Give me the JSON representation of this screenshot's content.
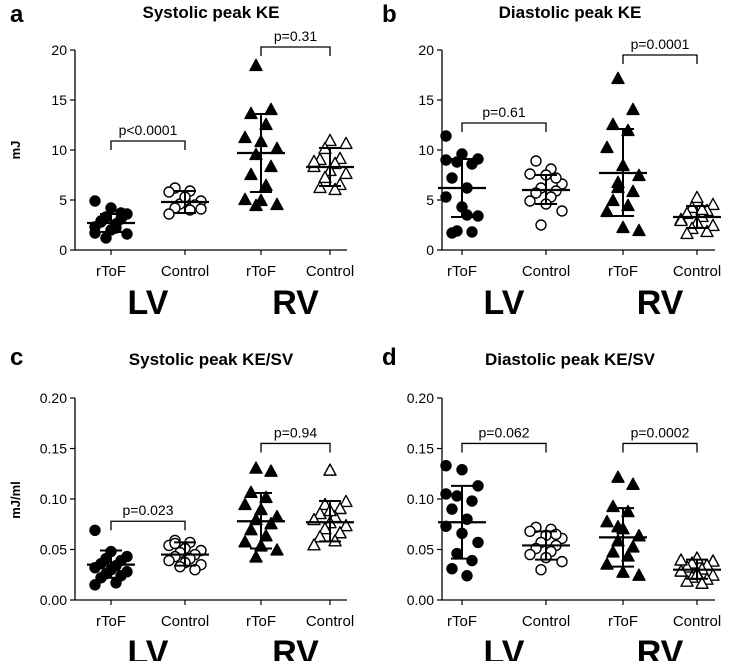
{
  "figure": {
    "background": "#ffffff",
    "ink": "#000000"
  },
  "chart_data": [
    {
      "panel_label": "a",
      "type": "scatter",
      "title": "Systolic peak KE",
      "ylabel": "mJ",
      "ylim": [
        0,
        20
      ],
      "yticks": [
        "0",
        "5",
        "10",
        "15",
        "20"
      ],
      "categories": [
        "rToF",
        "Control",
        "rToF",
        "Control"
      ],
      "groups": [
        "LV",
        "RV"
      ],
      "comparisons": [
        {
          "label": "p<0.0001",
          "from": 0,
          "to": 1,
          "y": 10.9
        },
        {
          "label": "p=0.31",
          "from": 2,
          "to": 3,
          "y": 20.3
        }
      ],
      "series": [
        {
          "name": "LV rToF",
          "marker": "circle",
          "filled": true,
          "mean": 2.7,
          "sd_low": 1.8,
          "sd_high": 3.6,
          "values": [
            4.9,
            4.2,
            3.6,
            3.3,
            3.1,
            2.9,
            2.6,
            2.3,
            2.0,
            1.6,
            1.2,
            3.7,
            2.8,
            2.2,
            1.7
          ]
        },
        {
          "name": "LV Control",
          "marker": "circle",
          "filled": false,
          "mean": 4.8,
          "sd_low": 3.7,
          "sd_high": 5.9,
          "values": [
            6.2,
            5.9,
            5.8,
            5.0,
            4.9,
            4.6,
            4.5,
            4.2,
            4.0,
            3.6,
            5.3,
            4.1
          ]
        },
        {
          "name": "RV rToF",
          "marker": "triangle",
          "filled": true,
          "mean": 9.7,
          "sd_low": 5.8,
          "sd_high": 13.6,
          "values": [
            18.4,
            14.0,
            13.6,
            12.5,
            11.2,
            10.8,
            10.1,
            9.5,
            8.3,
            7.5,
            6.4,
            5.0,
            4.9,
            4.5,
            4.4
          ]
        },
        {
          "name": "RV Control",
          "marker": "triangle",
          "filled": false,
          "mean": 8.3,
          "sd_low": 6.4,
          "sd_high": 10.2,
          "values": [
            10.9,
            10.6,
            10.1,
            9.1,
            9.0,
            8.6,
            8.3,
            7.9,
            7.6,
            7.2,
            6.5,
            6.2,
            6.0,
            8.8
          ]
        }
      ]
    },
    {
      "panel_label": "b",
      "type": "scatter",
      "title": "Diastolic peak KE",
      "ylabel": "",
      "ylim": [
        0,
        20
      ],
      "yticks": [
        "0",
        "5",
        "10",
        "15",
        "20"
      ],
      "categories": [
        "rToF",
        "Control",
        "rToF",
        "Control"
      ],
      "groups": [
        "LV",
        "RV"
      ],
      "comparisons": [
        {
          "label": "p=0.61",
          "from": 0,
          "to": 1,
          "y": 12.7
        },
        {
          "label": "p=0.0001",
          "from": 2,
          "to": 3,
          "y": 19.5
        }
      ],
      "series": [
        {
          "name": "LV rToF",
          "marker": "circle",
          "filled": true,
          "mean": 6.2,
          "sd_low": 3.3,
          "sd_high": 9.1,
          "values": [
            11.4,
            9.6,
            9.1,
            8.8,
            8.6,
            7.2,
            6.2,
            5.3,
            4.3,
            3.4,
            1.9,
            1.8,
            1.7,
            3.5,
            9.0
          ]
        },
        {
          "name": "LV Control",
          "marker": "circle",
          "filled": false,
          "mean": 6.0,
          "sd_low": 4.6,
          "sd_high": 7.5,
          "values": [
            8.9,
            8.1,
            7.6,
            7.5,
            6.6,
            6.2,
            5.9,
            5.7,
            5.3,
            4.9,
            4.6,
            3.9,
            2.5,
            7.2
          ]
        },
        {
          "name": "RV rToF",
          "marker": "triangle",
          "filled": true,
          "mean": 7.7,
          "sd_low": 3.4,
          "sd_high": 12.1,
          "values": [
            17.1,
            14.0,
            12.5,
            11.9,
            10.2,
            8.4,
            7.4,
            6.7,
            5.8,
            4.9,
            4.4,
            3.8,
            2.2,
            1.9,
            6.2
          ]
        },
        {
          "name": "RV Control",
          "marker": "triangle",
          "filled": false,
          "mean": 3.3,
          "sd_low": 2.2,
          "sd_high": 4.4,
          "values": [
            5.2,
            4.5,
            4.2,
            3.9,
            3.6,
            3.3,
            3.0,
            2.7,
            2.4,
            2.1,
            1.8,
            1.6,
            4.0,
            2.9
          ]
        }
      ]
    },
    {
      "panel_label": "c",
      "type": "scatter",
      "title": "Systolic peak KE/SV",
      "ylabel": "mJ/ml",
      "ylim": [
        0,
        0.2
      ],
      "yticks": [
        "0.00",
        "0.05",
        "0.10",
        "0.15",
        "0.20"
      ],
      "categories": [
        "rToF",
        "Control",
        "rToF",
        "Control"
      ],
      "groups": [
        "LV",
        "RV"
      ],
      "comparisons": [
        {
          "label": "p=0.023",
          "from": 0,
          "to": 1,
          "y": 0.078
        },
        {
          "label": "p=0.94",
          "from": 2,
          "to": 3,
          "y": 0.155
        }
      ],
      "series": [
        {
          "name": "LV rToF",
          "marker": "circle",
          "filled": true,
          "mean": 0.035,
          "sd_low": 0.022,
          "sd_high": 0.049,
          "values": [
            0.069,
            0.048,
            0.043,
            0.041,
            0.039,
            0.036,
            0.034,
            0.032,
            0.03,
            0.028,
            0.026,
            0.024,
            0.022,
            0.017,
            0.015
          ]
        },
        {
          "name": "LV Control",
          "marker": "circle",
          "filled": false,
          "mean": 0.045,
          "sd_low": 0.034,
          "sd_high": 0.057,
          "values": [
            0.059,
            0.057,
            0.054,
            0.051,
            0.049,
            0.047,
            0.045,
            0.043,
            0.041,
            0.039,
            0.037,
            0.035,
            0.033,
            0.03,
            0.056
          ]
        },
        {
          "name": "RV rToF",
          "marker": "triangle",
          "filled": true,
          "mean": 0.078,
          "sd_low": 0.051,
          "sd_high": 0.106,
          "values": [
            0.13,
            0.127,
            0.106,
            0.101,
            0.094,
            0.089,
            0.082,
            0.079,
            0.075,
            0.069,
            0.063,
            0.057,
            0.053,
            0.049,
            0.042
          ]
        },
        {
          "name": "RV Control",
          "marker": "triangle",
          "filled": false,
          "mean": 0.077,
          "sd_low": 0.058,
          "sd_high": 0.098,
          "values": [
            0.128,
            0.097,
            0.094,
            0.09,
            0.085,
            0.082,
            0.079,
            0.076,
            0.073,
            0.07,
            0.066,
            0.062,
            0.058,
            0.054,
            0.088
          ]
        }
      ]
    },
    {
      "panel_label": "d",
      "type": "scatter",
      "title": "Diastolic peak KE/SV",
      "ylabel": "",
      "ylim": [
        0,
        0.2
      ],
      "yticks": [
        "0.00",
        "0.05",
        "0.10",
        "0.15",
        "0.20"
      ],
      "categories": [
        "rToF",
        "Control",
        "rToF",
        "Control"
      ],
      "groups": [
        "LV",
        "RV"
      ],
      "comparisons": [
        {
          "label": "p=0.062",
          "from": 0,
          "to": 1,
          "y": 0.155
        },
        {
          "label": "p=0.0002",
          "from": 2,
          "to": 3,
          "y": 0.155
        }
      ],
      "series": [
        {
          "name": "LV rToF",
          "marker": "circle",
          "filled": true,
          "mean": 0.077,
          "sd_low": 0.041,
          "sd_high": 0.113,
          "values": [
            0.133,
            0.129,
            0.113,
            0.103,
            0.098,
            0.09,
            0.08,
            0.073,
            0.066,
            0.057,
            0.046,
            0.039,
            0.031,
            0.024,
            0.105
          ]
        },
        {
          "name": "LV Control",
          "marker": "circle",
          "filled": false,
          "mean": 0.054,
          "sd_low": 0.04,
          "sd_high": 0.068,
          "values": [
            0.072,
            0.07,
            0.068,
            0.064,
            0.061,
            0.057,
            0.054,
            0.051,
            0.048,
            0.045,
            0.042,
            0.038,
            0.03,
            0.065
          ]
        },
        {
          "name": "RV rToF",
          "marker": "triangle",
          "filled": true,
          "mean": 0.062,
          "sd_low": 0.033,
          "sd_high": 0.091,
          "values": [
            0.121,
            0.114,
            0.092,
            0.087,
            0.077,
            0.07,
            0.063,
            0.058,
            0.052,
            0.047,
            0.043,
            0.035,
            0.027,
            0.024,
            0.072
          ]
        },
        {
          "name": "RV Control",
          "marker": "triangle",
          "filled": false,
          "mean": 0.03,
          "sd_low": 0.021,
          "sd_high": 0.04,
          "values": [
            0.041,
            0.038,
            0.036,
            0.034,
            0.032,
            0.03,
            0.028,
            0.026,
            0.024,
            0.022,
            0.02,
            0.018,
            0.016,
            0.039,
            0.025
          ]
        }
      ]
    }
  ]
}
